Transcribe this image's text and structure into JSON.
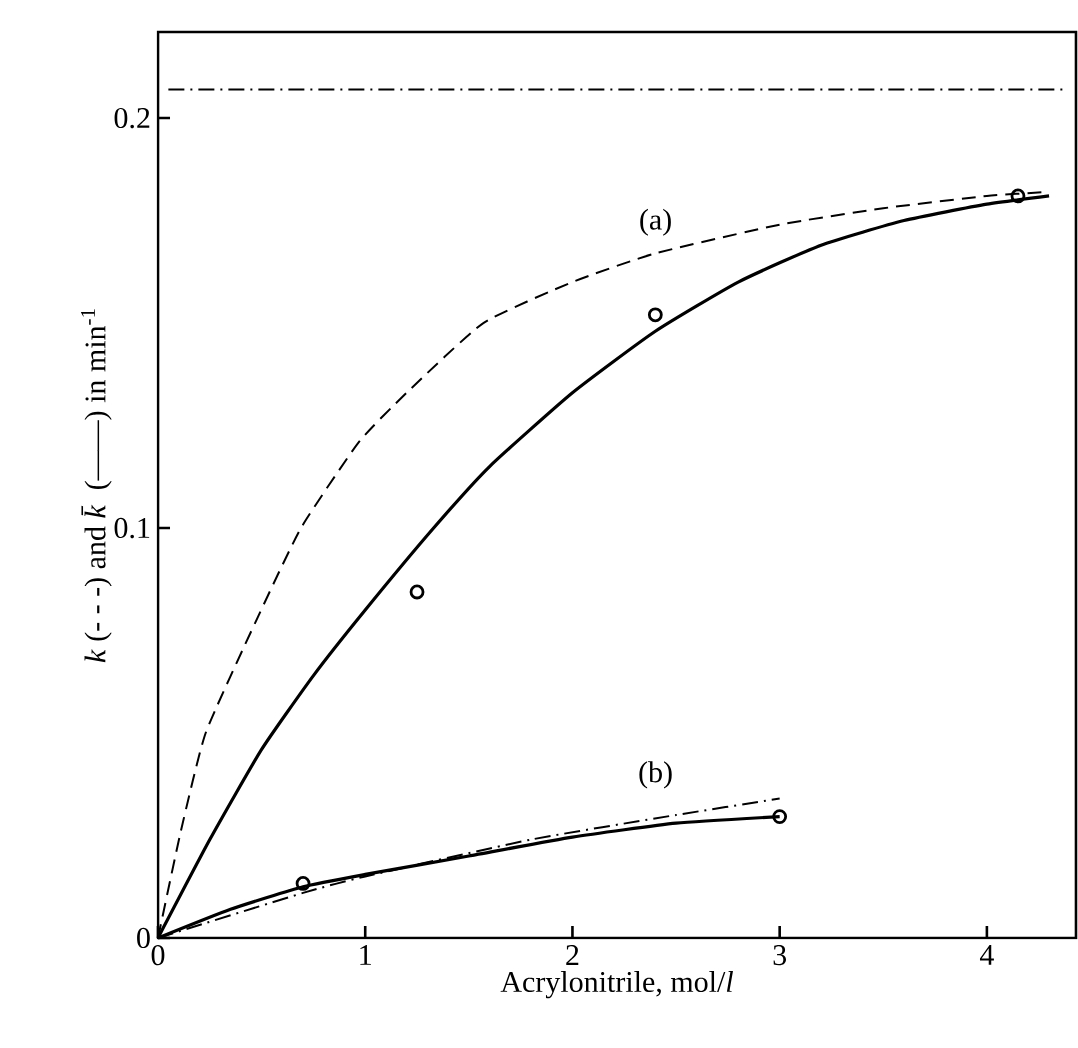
{
  "chart_data": {
    "type": "line",
    "xlabel": "Acrylonitrile, mol/*l*",
    "ylabel": "*k* (- - -) and *k̄* (——) in min$^{-1}$",
    "xlim": [
      0,
      4.43
    ],
    "ylim": [
      0,
      0.221
    ],
    "xticks": [
      0,
      1,
      2,
      3,
      4
    ],
    "yticks": [
      0,
      0.1,
      0.2
    ],
    "grid": false,
    "series": [
      {
        "line_style": "dashed",
        "color": "#000000",
        "x": [
          0,
          0.11,
          0.23,
          0.47,
          0.69,
          0.97,
          1.2,
          1.57,
          2,
          2.4,
          3,
          3.5,
          4,
          4.3
        ],
        "values": [
          0,
          0.026,
          0.05,
          0.077,
          0.1,
          0.121,
          0.133,
          0.15,
          0.16,
          0.167,
          0.174,
          0.178,
          0.181,
          0.182
        ]
      },
      {
        "line_style": "solid",
        "color": "#000000",
        "x": [
          0,
          0.25,
          0.5,
          0.75,
          1,
          1.33,
          1.6,
          2,
          2.4,
          2.8,
          3.2,
          3.6,
          4,
          4.3
        ],
        "values": [
          0,
          0.024,
          0.046,
          0.064,
          0.08,
          0.1,
          0.115,
          0.133,
          0.148,
          0.16,
          0.169,
          0.175,
          0.179,
          0.181
        ]
      },
      {
        "line_style": "solid",
        "color": "#000000",
        "x": [
          0,
          0.35,
          0.7,
          1,
          1.5,
          2,
          2.5,
          3
        ],
        "values": [
          0,
          0.007,
          0.0125,
          0.0155,
          0.02,
          0.0246,
          0.028,
          0.0296
        ]
      },
      {
        "line_style": "dashdot",
        "color": "#000000",
        "x": [
          0,
          0.7,
          1,
          1.8,
          2.5,
          3
        ],
        "values": [
          0,
          0.011,
          0.015,
          0.024,
          0.03,
          0.034
        ]
      },
      {
        "type": "scatter",
        "marker": "circle",
        "color": "#000000",
        "x": [
          0.7,
          1.25,
          2.4,
          3,
          4.15
        ],
        "values": [
          0.0133,
          0.0844,
          0.152,
          0.0296,
          0.181
        ]
      }
    ],
    "ref_lines": [
      {
        "axis": "y",
        "value": 0.207,
        "line_style": "dashdot",
        "color": "#000000"
      }
    ],
    "annotations": [
      "(a)",
      "(b)"
    ]
  }
}
